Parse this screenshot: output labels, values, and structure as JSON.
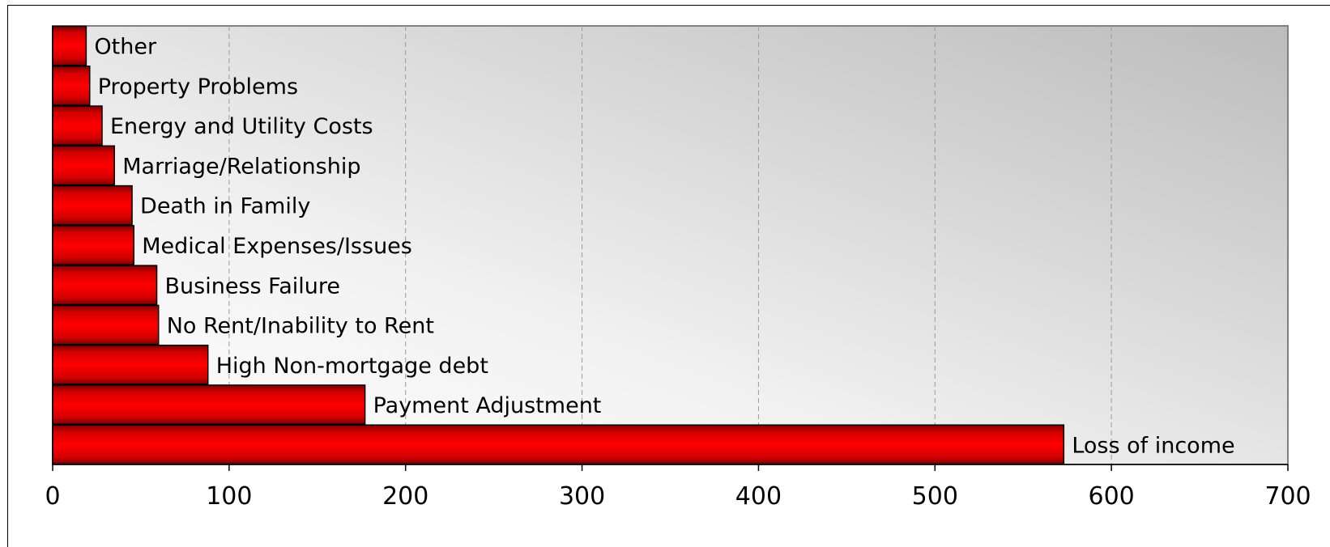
{
  "chart_data": {
    "type": "bar",
    "orientation": "horizontal",
    "categories": [
      "Loss of income",
      "Payment Adjustment",
      "High Non-mortgage debt",
      "No Rent/Inability to Rent",
      "Business Failure",
      "Medical Expenses/Issues",
      "Death in Family",
      "Marriage/Relationship",
      "Energy and Utility Costs",
      "Property Problems",
      "Other"
    ],
    "values": [
      573,
      177,
      88,
      60,
      59,
      46,
      45,
      35,
      28,
      21,
      19
    ],
    "xlim": [
      0,
      700
    ],
    "xticks": [
      "0",
      "100",
      "200",
      "300",
      "400",
      "500",
      "600",
      "700"
    ],
    "grid": true,
    "legend": "none",
    "colors": {
      "bar": "#ff0000",
      "bar_edge": "#8a0000",
      "plot_bg_light": "#fbfbfb",
      "plot_bg_dark": "#bdbdbd",
      "grid": "#9a9a9a"
    }
  }
}
